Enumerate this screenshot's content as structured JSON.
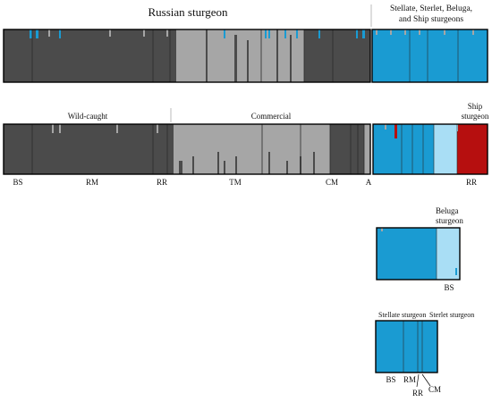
{
  "colors": {
    "dark": "#4b4b4b",
    "light": "#a6a6a6",
    "blue": "#1a9bd2",
    "pale_blue": "#a9def5",
    "red": "#b60f0f",
    "gridline": "#2a2a2a",
    "frame": "#000000"
  },
  "panel1": {
    "title_left": "Russian sturgeon",
    "title_right_lines": [
      "Stellate, Sterlet, Beluga,",
      "and Ship sturgeons"
    ]
  },
  "panel2": {
    "group_wild": "Wild-caught",
    "group_commercial": "Commercial",
    "ship_label_lines": [
      "Ship",
      "sturgeon"
    ],
    "axis_labels": [
      "BS",
      "RM",
      "RR",
      "TM",
      "CM",
      "A",
      "RR"
    ]
  },
  "panel3": {
    "beluga_label_lines": [
      "Beluga",
      "sturgeon"
    ],
    "axis_label": "BS"
  },
  "panel4": {
    "stellate_label": "Stellate sturgeon",
    "sterlet_label": "Sterlet sturgeon",
    "axis_labels": [
      "BS",
      "RM",
      "RR",
      "CM"
    ]
  }
}
